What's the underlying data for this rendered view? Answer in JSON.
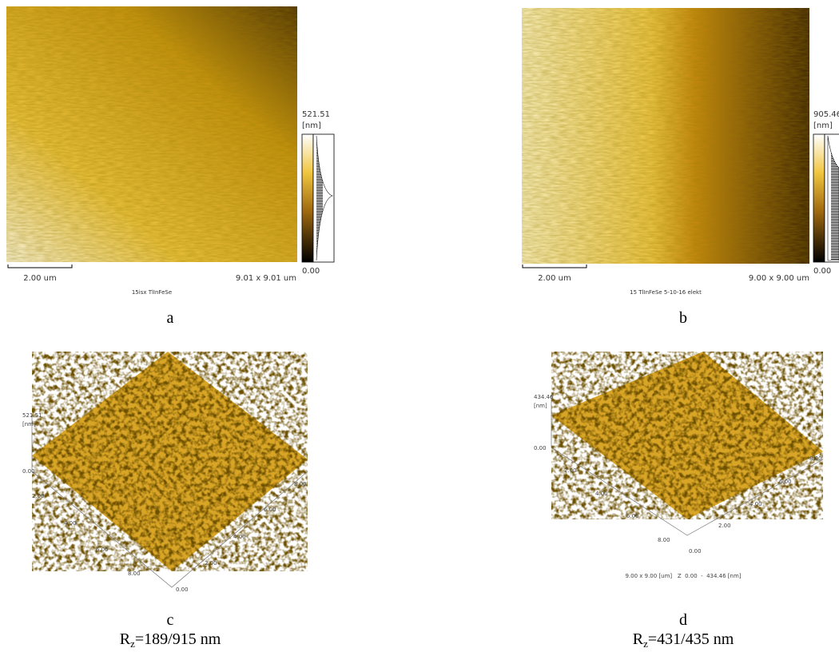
{
  "panels": [
    {
      "label": "a",
      "scale_max": "521.51",
      "unit": "[nm]",
      "scale_min": "0.00",
      "scale_bar": "2.00 um",
      "size": "9.01 x 9.01 um",
      "sample": "15isx TlInFeSe"
    },
    {
      "label": "b",
      "scale_max": "905.46",
      "unit": "[nm]",
      "scale_min": "0.00",
      "scale_bar": "2.00 um",
      "size": "9.00 x 9.00 um",
      "sample": "15 TlInFeSe 5-10-16 elekt"
    },
    {
      "label": "c",
      "z_max": "521.51",
      "unit": "[nm]",
      "z_min": "0.00",
      "axis_left": [
        "2.00",
        "4.00",
        "6.00",
        "8.00"
      ],
      "axis_right": [
        "0.00",
        "2.00",
        "4.00",
        "6.00",
        "8.00"
      ],
      "rz": {
        "symbol": "R",
        "subscript": "z",
        "text": "=189/915 nm"
      }
    },
    {
      "label": "d",
      "z_max": "434.46",
      "unit": "[nm]",
      "z_min": "0.00",
      "axis_left": [
        "2.00",
        "4.00",
        "6.00",
        "8.00"
      ],
      "axis_right": [
        "0.00",
        "2.00",
        "4.00",
        "6.00",
        "8.00"
      ],
      "caption": "9.00 x 9.00 [um]   Z  0.00  -  434.46 [nm]",
      "rz": {
        "symbol": "R",
        "subscript": "z",
        "text": "=431/435 nm"
      }
    }
  ]
}
